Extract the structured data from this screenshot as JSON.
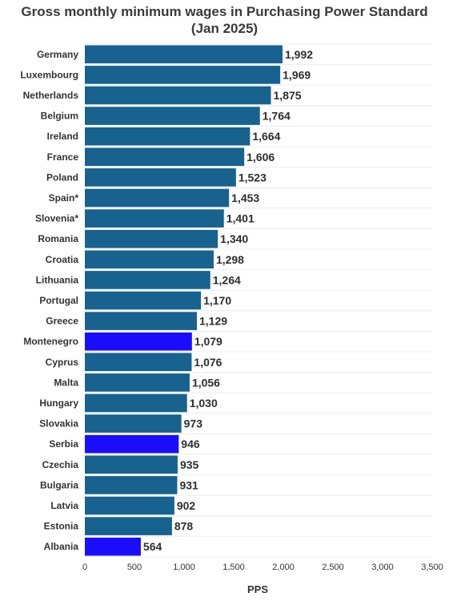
{
  "chart_data": {
    "type": "bar",
    "orientation": "horizontal",
    "title": "Gross monthly minimum wages in Purchasing Power Standard (Jan 2025)",
    "title_line1": "Gross monthly minimum wages in Purchasing Power Standard",
    "title_line2": "(Jan 2025)",
    "xlabel": "PPS",
    "ylabel": "",
    "xlim": [
      0,
      3500
    ],
    "xticks": [
      0,
      500,
      1000,
      1500,
      2000,
      2500,
      3000,
      3500
    ],
    "xtick_labels": [
      "0",
      "500",
      "1,000",
      "1,500",
      "2,000",
      "2,500",
      "3,000",
      "3,500"
    ],
    "grid": "horizontal light lines",
    "categories": [
      "Germany",
      "Luxembourg",
      "Netherlands",
      "Belgium",
      "Ireland",
      "France",
      "Poland",
      "Spain*",
      "Slovenia*",
      "Romania",
      "Croatia",
      "Lithuania",
      "Portugal",
      "Greece",
      "Montenegro",
      "Cyprus",
      "Malta",
      "Hungary",
      "Slovakia",
      "Serbia",
      "Czechia",
      "Bulgaria",
      "Latvia",
      "Estonia",
      "Albania"
    ],
    "values": [
      1992,
      1969,
      1875,
      1764,
      1664,
      1606,
      1523,
      1453,
      1401,
      1340,
      1298,
      1264,
      1170,
      1129,
      1079,
      1076,
      1056,
      1030,
      973,
      946,
      935,
      931,
      902,
      878,
      564
    ],
    "value_labels": [
      "1,992",
      "1,969",
      "1,875",
      "1,764",
      "1,664",
      "1,606",
      "1,523",
      "1,453",
      "1,401",
      "1,340",
      "1,298",
      "1,264",
      "1,170",
      "1,129",
      "1,079",
      "1,076",
      "1,056",
      "1,030",
      "973",
      "946",
      "935",
      "931",
      "902",
      "878",
      "564"
    ],
    "highlighted": [
      "Montenegro",
      "Serbia",
      "Albania"
    ],
    "colors": {
      "default": "#17628f",
      "highlight": "#1a0dfb",
      "grid": "#ececec"
    }
  }
}
